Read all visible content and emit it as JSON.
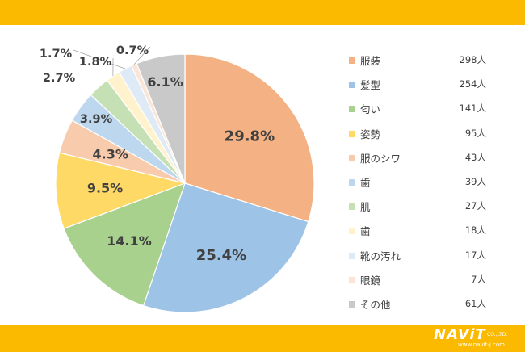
{
  "chart_data": {
    "type": "pie",
    "title": "",
    "start_angle_deg": 90,
    "direction": "clockwise",
    "legend_position": "right",
    "slices": [
      {
        "label": "服装",
        "value": 29.8,
        "percent_label": "29.8%",
        "count_label": "298人",
        "color": "#F4B183"
      },
      {
        "label": "髪型",
        "value": 25.4,
        "percent_label": "25.4%",
        "count_label": "254人",
        "color": "#9DC3E6"
      },
      {
        "label": "匂い",
        "value": 14.1,
        "percent_label": "14.1%",
        "count_label": "141人",
        "color": "#A9D18E"
      },
      {
        "label": "姿勢",
        "value": 9.5,
        "percent_label": "9.5%",
        "count_label": "95人",
        "color": "#FFD966"
      },
      {
        "label": "服のシワ",
        "value": 4.3,
        "percent_label": "4.3%",
        "count_label": "43人",
        "color": "#F8CBAD"
      },
      {
        "label": "歯",
        "value": 3.9,
        "percent_label": "3.9%",
        "count_label": "39人",
        "color": "#BDD7EE"
      },
      {
        "label": "肌",
        "value": 2.7,
        "percent_label": "2.7%",
        "count_label": "27人",
        "color": "#C5E0B4"
      },
      {
        "label": "歯",
        "value": 1.8,
        "percent_label": "1.8%",
        "count_label": "18人",
        "color": "#FFF2CC"
      },
      {
        "label": "靴の汚れ",
        "value": 1.7,
        "percent_label": "1.7%",
        "count_label": "17人",
        "color": "#DEEBF7"
      },
      {
        "label": "眼鏡",
        "value": 0.7,
        "percent_label": "0.7%",
        "count_label": "7人",
        "color": "#FBE5D6"
      },
      {
        "label": "その他",
        "value": 6.1,
        "percent_label": "6.1%",
        "count_label": "61人",
        "color": "#C9C9C9"
      }
    ]
  },
  "banner": {
    "top_color": "#FBBA00",
    "bottom_color": "#FBBA00"
  },
  "logo": {
    "brand": "NAViT",
    "suffix": "CO.,LTD.",
    "url": "www.navit-j.com"
  }
}
